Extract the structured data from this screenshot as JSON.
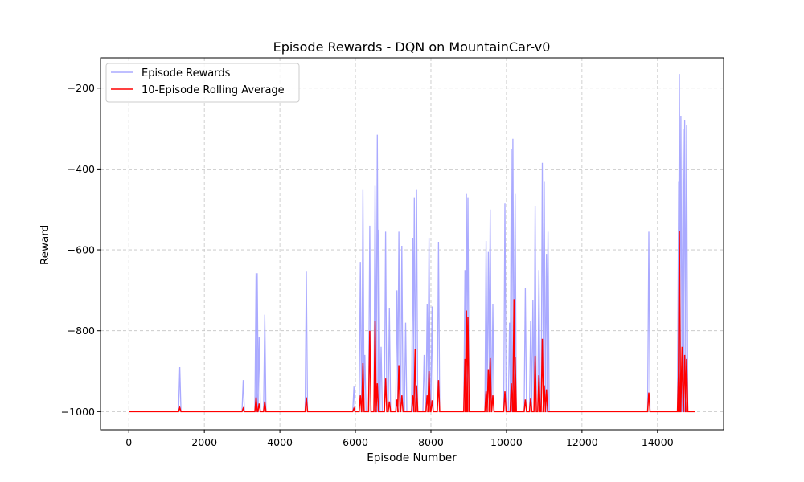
{
  "chart_data": {
    "type": "line",
    "title": "Episode Rewards - DQN on MountainCar-v0",
    "xlabel": "Episode Number",
    "ylabel": "Reward",
    "xlim": [
      -750,
      15750
    ],
    "ylim": [
      -1045,
      -125
    ],
    "xticks": [
      0,
      2000,
      4000,
      6000,
      8000,
      10000,
      12000,
      14000
    ],
    "yticks": [
      -1000,
      -800,
      -600,
      -400,
      -200
    ],
    "xtick_labels": [
      "0",
      "2000",
      "4000",
      "6000",
      "8000",
      "10000",
      "12000",
      "14000"
    ],
    "ytick_labels": [
      "−1000",
      "−800",
      "−600",
      "−400",
      "−200"
    ],
    "grid": true,
    "legend_position": "upper-left",
    "series": [
      {
        "name": "Episode Rewards",
        "color": "#aaaaff",
        "baseline": -1000,
        "x_range": [
          0,
          15000
        ],
        "spikes": [
          [
            1350,
            -890
          ],
          [
            3030,
            -922
          ],
          [
            3370,
            -658
          ],
          [
            3400,
            -658
          ],
          [
            3450,
            -815
          ],
          [
            3600,
            -760
          ],
          [
            4700,
            -652
          ],
          [
            5960,
            -938
          ],
          [
            6130,
            -630
          ],
          [
            6200,
            -450
          ],
          [
            6250,
            -860
          ],
          [
            6380,
            -540
          ],
          [
            6520,
            -440
          ],
          [
            6580,
            -315
          ],
          [
            6620,
            -550
          ],
          [
            6680,
            -840
          ],
          [
            6800,
            -555
          ],
          [
            6900,
            -745
          ],
          [
            7100,
            -700
          ],
          [
            7150,
            -555
          ],
          [
            7230,
            -590
          ],
          [
            7330,
            -780
          ],
          [
            7520,
            -570
          ],
          [
            7560,
            -470
          ],
          [
            7620,
            -450
          ],
          [
            7820,
            -860
          ],
          [
            7900,
            -735
          ],
          [
            7950,
            -570
          ],
          [
            8030,
            -740
          ],
          [
            8200,
            -580
          ],
          [
            8900,
            -650
          ],
          [
            8940,
            -460
          ],
          [
            8980,
            -470
          ],
          [
            9460,
            -578
          ],
          [
            9520,
            -605
          ],
          [
            9570,
            -500
          ],
          [
            9640,
            -735
          ],
          [
            9960,
            -485
          ],
          [
            10080,
            -780
          ],
          [
            10130,
            -350
          ],
          [
            10170,
            -325
          ],
          [
            10230,
            -460
          ],
          [
            10500,
            -695
          ],
          [
            10640,
            -775
          ],
          [
            10700,
            -725
          ],
          [
            10760,
            -492
          ],
          [
            10860,
            -650
          ],
          [
            10950,
            -385
          ],
          [
            11000,
            -430
          ],
          [
            11060,
            -610
          ],
          [
            11100,
            -555
          ],
          [
            13770,
            -555
          ],
          [
            14560,
            -430
          ],
          [
            14580,
            -165
          ],
          [
            14620,
            -270
          ],
          [
            14680,
            -300
          ],
          [
            14720,
            -280
          ],
          [
            14770,
            -292
          ]
        ]
      },
      {
        "name": "10-Episode Rolling Average",
        "color": "#ff0000",
        "baseline": -1000,
        "x_range": [
          0,
          15000
        ],
        "spikes": [
          [
            1350,
            -990
          ],
          [
            3030,
            -992
          ],
          [
            3370,
            -965
          ],
          [
            3450,
            -980
          ],
          [
            3600,
            -975
          ],
          [
            4700,
            -965
          ],
          [
            5960,
            -992
          ],
          [
            6130,
            -960
          ],
          [
            6200,
            -880
          ],
          [
            6380,
            -800
          ],
          [
            6520,
            -775
          ],
          [
            6580,
            -930
          ],
          [
            6800,
            -918
          ],
          [
            6900,
            -975
          ],
          [
            7100,
            -970
          ],
          [
            7150,
            -885
          ],
          [
            7230,
            -960
          ],
          [
            7520,
            -960
          ],
          [
            7580,
            -845
          ],
          [
            7620,
            -935
          ],
          [
            7900,
            -960
          ],
          [
            7950,
            -900
          ],
          [
            8030,
            -972
          ],
          [
            8200,
            -922
          ],
          [
            8900,
            -870
          ],
          [
            8940,
            -750
          ],
          [
            8980,
            -765
          ],
          [
            9460,
            -950
          ],
          [
            9520,
            -895
          ],
          [
            9570,
            -868
          ],
          [
            9640,
            -960
          ],
          [
            9960,
            -950
          ],
          [
            10130,
            -930
          ],
          [
            10200,
            -722
          ],
          [
            10230,
            -865
          ],
          [
            10500,
            -970
          ],
          [
            10640,
            -968
          ],
          [
            10760,
            -862
          ],
          [
            10860,
            -910
          ],
          [
            10950,
            -820
          ],
          [
            11000,
            -935
          ],
          [
            11060,
            -945
          ],
          [
            13770,
            -953
          ],
          [
            14560,
            -890
          ],
          [
            14580,
            -553
          ],
          [
            14650,
            -840
          ],
          [
            14720,
            -860
          ],
          [
            14770,
            -870
          ]
        ]
      }
    ]
  }
}
